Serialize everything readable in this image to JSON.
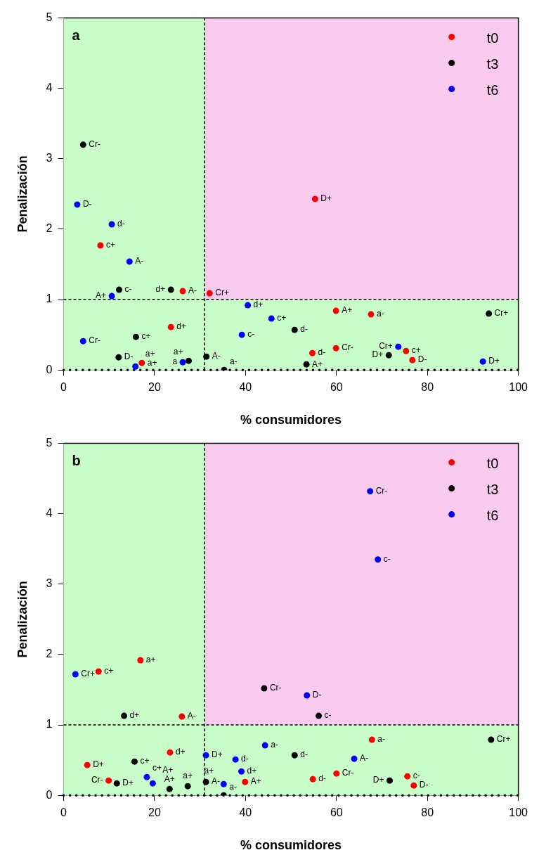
{
  "chart_data": [
    {
      "type": "scatter",
      "annotations": [
        "a"
      ],
      "xlabel": "% consumidores",
      "ylabel": "Penalización",
      "xlim": [
        0,
        100
      ],
      "xticks": [
        0,
        20,
        40,
        60,
        80,
        100
      ],
      "ylim": [
        0,
        5
      ],
      "yticks": [
        0,
        1,
        2,
        3,
        4,
        5
      ],
      "grid": false,
      "legend": "top right",
      "marker": "circle",
      "bands": [
        {
          "axis": "y",
          "from": 1,
          "to": 5,
          "color": "#f8cbee"
        },
        {
          "axis": "x",
          "from": 0,
          "to": 31,
          "color": "#c8fcc8"
        },
        {
          "axis": "y",
          "from": 0,
          "to": 1,
          "color": "#c8fcc8"
        }
      ],
      "ref_lines": [
        {
          "axis": "x",
          "value": 31,
          "line_style": "dashed"
        },
        {
          "axis": "y",
          "value": 1,
          "line_style": "dashed"
        },
        {
          "axis": "y",
          "value": 0,
          "line_style": "dotted"
        }
      ],
      "series": [
        {
          "name": "t0",
          "color": "#ff0000",
          "x": [
            8.1,
            26.2,
            32.1,
            23.6,
            17.2,
            55.3,
            59.9,
            67.6,
            54.7,
            59.9,
            75.3,
            76.7
          ],
          "values": [
            1.77,
            1.12,
            1.09,
            0.61,
            0.1,
            2.43,
            0.84,
            0.79,
            0.24,
            0.31,
            0.27,
            0.14
          ],
          "value_labels": [
            "c+",
            "A-",
            "Cr+",
            "d+",
            "a+",
            "D+",
            "A+",
            "a-",
            "d-",
            "Cr-",
            "c+",
            "D-"
          ]
        },
        {
          "name": "t3",
          "color": "#000000",
          "x": [
            4.3,
            12.2,
            23.6,
            15.9,
            12.1,
            27.5,
            31.4,
            35.3,
            50.8,
            93.5,
            53.4,
            71.5
          ],
          "values": [
            3.2,
            1.14,
            1.14,
            0.47,
            0.18,
            0.13,
            0.19,
            0.0,
            0.57,
            0.8,
            0.08,
            0.21
          ],
          "value_labels": [
            "Cr-",
            "c-",
            "d+",
            "c+",
            "D-",
            "a+",
            "A-",
            "a-",
            "d-",
            "Cr+",
            "A+",
            "D+"
          ]
        },
        {
          "name": "t6",
          "color": "#0000ff",
          "x": [
            3.0,
            10.6,
            14.5,
            10.6,
            4.3,
            15.8,
            26.2,
            40.5,
            45.7,
            39.2,
            73.6,
            92.2
          ],
          "values": [
            2.35,
            2.07,
            1.54,
            1.05,
            0.41,
            0.05,
            0.11,
            0.92,
            0.73,
            0.5,
            0.33,
            0.12
          ],
          "value_labels": [
            "D-",
            "d-",
            "A-",
            "A+",
            "Cr-",
            "a+",
            "a",
            "d+",
            "c+",
            "c-",
            "Cr+",
            "D+"
          ]
        }
      ]
    },
    {
      "type": "scatter",
      "annotations": [
        "b"
      ],
      "xlabel": "% consumidores",
      "ylabel": "Penalización",
      "xlim": [
        0,
        100
      ],
      "xticks": [
        0,
        20,
        40,
        60,
        80,
        100
      ],
      "ylim": [
        0,
        5
      ],
      "yticks": [
        0,
        1,
        2,
        3,
        4,
        5
      ],
      "grid": false,
      "legend": "top right",
      "marker": "circle",
      "bands": [
        {
          "axis": "y",
          "from": 1,
          "to": 5,
          "color": "#f8cbee"
        },
        {
          "axis": "x",
          "from": 0,
          "to": 31,
          "color": "#c8fcc8"
        },
        {
          "axis": "y",
          "from": 0,
          "to": 1,
          "color": "#c8fcc8"
        }
      ],
      "ref_lines": [
        {
          "axis": "x",
          "value": 31,
          "line_style": "dashed"
        },
        {
          "axis": "y",
          "value": 1,
          "line_style": "dashed"
        },
        {
          "axis": "y",
          "value": 0,
          "line_style": "dotted"
        }
      ],
      "series": [
        {
          "name": "t0",
          "color": "#ff0000",
          "x": [
            16.9,
            7.7,
            26.0,
            23.4,
            5.2,
            9.9,
            67.8,
            39.9,
            54.8,
            60.0,
            75.6,
            77.0
          ],
          "values": [
            1.92,
            1.76,
            1.12,
            0.61,
            0.43,
            0.21,
            0.79,
            0.19,
            0.23,
            0.31,
            0.27,
            0.14
          ],
          "value_labels": [
            "a+",
            "c+",
            "A-",
            "d+",
            "D+",
            "Cr-",
            "a-",
            "A+",
            "d-",
            "Cr-",
            "c-",
            "D-"
          ]
        },
        {
          "name": "t3",
          "color": "#000000",
          "x": [
            13.3,
            15.6,
            11.7,
            23.3,
            27.3,
            31.3,
            35.2,
            44.1,
            56.1,
            94.0,
            50.8,
            71.7
          ],
          "values": [
            1.13,
            0.48,
            0.17,
            0.09,
            0.13,
            0.19,
            0.0,
            1.52,
            1.13,
            0.79,
            0.57,
            0.21
          ],
          "value_labels": [
            "d+",
            "c+",
            "D+",
            "A+",
            "a+",
            "A-",
            "a-",
            "Cr-",
            "c-",
            "Cr+",
            "d-",
            "D+"
          ]
        },
        {
          "name": "t6",
          "color": "#0000ff",
          "x": [
            67.4,
            69.1,
            2.6,
            31.3,
            18.3,
            19.6,
            35.2,
            53.5,
            44.3,
            37.8,
            63.9,
            39.1
          ],
          "values": [
            4.32,
            3.35,
            1.72,
            0.57,
            0.26,
            0.17,
            0.16,
            1.42,
            0.71,
            0.51,
            0.52,
            0.34
          ],
          "value_labels": [
            "Cr-",
            "c-",
            "Cr+",
            "D+",
            "c+",
            "A+",
            "a+",
            "D-",
            "a-",
            "d-",
            "A-",
            "d+"
          ]
        }
      ]
    }
  ]
}
